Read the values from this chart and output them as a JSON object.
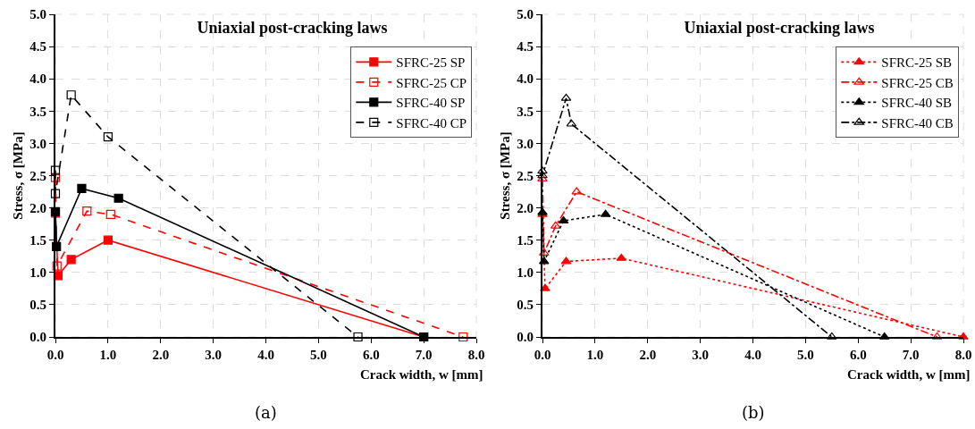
{
  "chart_data": [
    {
      "type": "line",
      "title": "Uniaxial post-cracking laws",
      "xlabel": "Crack width, w [mm]",
      "ylabel": "Stress, σ [MPa]",
      "annotations": [
        "(a)"
      ],
      "xlim": [
        0,
        8
      ],
      "xticks": [
        {
          "value": 0,
          "label": "0.0"
        },
        {
          "value": 1,
          "label": "1.0"
        },
        {
          "value": 2,
          "label": "2.0"
        },
        {
          "value": 3,
          "label": "3.0"
        },
        {
          "value": 4,
          "label": "4.0"
        },
        {
          "value": 5,
          "label": "5.0"
        },
        {
          "value": 6,
          "label": "6.0"
        },
        {
          "value": 7,
          "label": "7.0"
        },
        {
          "value": 8,
          "label": "8.0"
        }
      ],
      "ylim": [
        0,
        5
      ],
      "yticks": [
        {
          "value": 0,
          "label": "0.0"
        },
        {
          "value": 0.5,
          "label": "0.5"
        },
        {
          "value": 1,
          "label": "1.0"
        },
        {
          "value": 1.5,
          "label": "1.5"
        },
        {
          "value": 2,
          "label": "2.0"
        },
        {
          "value": 2.5,
          "label": "2.5"
        },
        {
          "value": 3,
          "label": "3.0"
        },
        {
          "value": 3.5,
          "label": "3.5"
        },
        {
          "value": 4,
          "label": "4.0"
        },
        {
          "value": 4.5,
          "label": "4.5"
        },
        {
          "value": 5,
          "label": "5.0"
        }
      ],
      "grid": true,
      "legend": "top right",
      "series": [
        {
          "name": "SFRC-25 SP",
          "color": "#ff0000",
          "marker": "square",
          "line_style": "solid",
          "x": [
            0,
            0.05,
            0.3,
            1.0,
            7.0
          ],
          "values": [
            1.92,
            0.95,
            1.2,
            1.5,
            0
          ]
        },
        {
          "name": "SFRC-25 CP",
          "color": "#ff0000",
          "marker": "square-open",
          "line_style": "dashed",
          "x": [
            0,
            0.03,
            0.6,
            1.05,
            7.75
          ],
          "values": [
            2.47,
            1.1,
            1.95,
            1.9,
            0
          ]
        },
        {
          "name": "SFRC-40 SP",
          "color": "#000000",
          "marker": "square",
          "line_style": "solid",
          "x": [
            0,
            0.02,
            0.5,
            1.2,
            7.0
          ],
          "values": [
            1.94,
            1.4,
            2.3,
            2.15,
            0
          ]
        },
        {
          "name": "SFRC-40 CP",
          "color": "#000000",
          "marker": "square-open",
          "line_style": "dashed",
          "x": [
            0,
            0,
            0.3,
            1.0,
            5.75
          ],
          "values": [
            2.58,
            2.22,
            3.75,
            3.1,
            0
          ]
        }
      ]
    },
    {
      "type": "line",
      "title": "Uniaxial post-cracking laws",
      "xlabel": "Crack width, w [mm]",
      "ylabel": "Stress, σ [MPa]",
      "annotations": [
        "(b)"
      ],
      "xlim": [
        0,
        8
      ],
      "xticks": [
        {
          "value": 0,
          "label": "0.0"
        },
        {
          "value": 1,
          "label": "1.0"
        },
        {
          "value": 2,
          "label": "2.0"
        },
        {
          "value": 3,
          "label": "3.0"
        },
        {
          "value": 4,
          "label": "4.0"
        },
        {
          "value": 5,
          "label": "5.0"
        },
        {
          "value": 6,
          "label": "6.0"
        },
        {
          "value": 7,
          "label": "7.0"
        },
        {
          "value": 8,
          "label": "8.0"
        }
      ],
      "ylim": [
        0,
        5
      ],
      "yticks": [
        {
          "value": 0,
          "label": "0.0"
        },
        {
          "value": 0.5,
          "label": "0.5"
        },
        {
          "value": 1,
          "label": "1.0"
        },
        {
          "value": 1.5,
          "label": "1.5"
        },
        {
          "value": 2,
          "label": "2.0"
        },
        {
          "value": 2.5,
          "label": "2.5"
        },
        {
          "value": 3,
          "label": "3.0"
        },
        {
          "value": 3.5,
          "label": "3.5"
        },
        {
          "value": 4,
          "label": "4.0"
        },
        {
          "value": 4.5,
          "label": "4.5"
        },
        {
          "value": 5,
          "label": "5.0"
        }
      ],
      "grid": true,
      "legend": "top right",
      "series": [
        {
          "name": "SFRC-25 SB",
          "color": "#ff0000",
          "marker": "triangle",
          "line_style": "dotted",
          "x": [
            0,
            0.05,
            0.45,
            1.5,
            8.0
          ],
          "values": [
            1.9,
            0.75,
            1.17,
            1.22,
            0
          ]
        },
        {
          "name": "SFRC-25 CB",
          "color": "#ff0000",
          "marker": "triangle-open",
          "line_style": "dashdot",
          "x": [
            0,
            0.03,
            0.25,
            0.65,
            7.5
          ],
          "values": [
            2.45,
            1.3,
            1.72,
            2.25,
            0
          ]
        },
        {
          "name": "SFRC-40 SB",
          "color": "#000000",
          "marker": "triangle",
          "line_style": "dotted",
          "x": [
            0,
            0.03,
            0.4,
            1.2,
            6.5
          ],
          "values": [
            1.93,
            1.17,
            1.8,
            1.9,
            0
          ]
        },
        {
          "name": "SFRC-40 CB",
          "color": "#000000",
          "marker": "triangle-open",
          "line_style": "dashdot",
          "x": [
            0,
            0,
            0.45,
            0.55,
            5.5
          ],
          "values": [
            2.57,
            2.5,
            3.7,
            3.3,
            0
          ]
        }
      ]
    }
  ]
}
